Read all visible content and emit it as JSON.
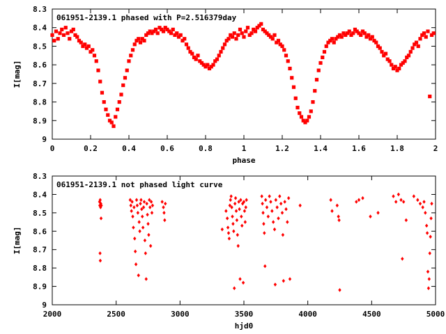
{
  "chart_data": [
    {
      "type": "scatter",
      "title": "061951-2139.1 phased with P=2.516379day",
      "xlabel": "phase",
      "ylabel": "I[mag]",
      "xlim": [
        0,
        2
      ],
      "ylim": [
        8.3,
        9.0
      ],
      "y_inverted": true,
      "grid": false,
      "marker_color": "#ff0000",
      "x_ticks": [
        "0",
        "0.2",
        "0.4",
        "0.6",
        "0.8",
        "1",
        "1.2",
        "1.4",
        "1.6",
        "1.8",
        "2"
      ],
      "x_tick_values": [
        0,
        0.2,
        0.4,
        0.6,
        0.8,
        1.0,
        1.2,
        1.4,
        1.6,
        1.8,
        2.0
      ],
      "y_ticks": [
        "8.3",
        "8.4",
        "8.5",
        "8.6",
        "8.7",
        "8.8",
        "8.9",
        "9"
      ],
      "y_tick_values": [
        8.3,
        8.4,
        8.5,
        8.6,
        8.7,
        8.8,
        8.9,
        9.0
      ],
      "points": [
        [
          0.0,
          8.44
        ],
        [
          0.01,
          8.47
        ],
        [
          0.02,
          8.42
        ],
        [
          0.03,
          8.46
        ],
        [
          0.04,
          8.43
        ],
        [
          0.05,
          8.41
        ],
        [
          0.06,
          8.44
        ],
        [
          0.07,
          8.4
        ],
        [
          0.08,
          8.43
        ],
        [
          0.09,
          8.46
        ],
        [
          0.1,
          8.42
        ],
        [
          0.11,
          8.41
        ],
        [
          0.12,
          8.44
        ],
        [
          0.13,
          8.45
        ],
        [
          0.14,
          8.47
        ],
        [
          0.15,
          8.48
        ],
        [
          0.16,
          8.5
        ],
        [
          0.17,
          8.49
        ],
        [
          0.18,
          8.51
        ],
        [
          0.19,
          8.5
        ],
        [
          0.2,
          8.53
        ],
        [
          0.21,
          8.52
        ],
        [
          0.22,
          8.55
        ],
        [
          0.23,
          8.58
        ],
        [
          0.24,
          8.63
        ],
        [
          0.25,
          8.69
        ],
        [
          0.26,
          8.75
        ],
        [
          0.27,
          8.8
        ],
        [
          0.28,
          8.84
        ],
        [
          0.29,
          8.87
        ],
        [
          0.3,
          8.9
        ],
        [
          0.31,
          8.91
        ],
        [
          0.32,
          8.93
        ],
        [
          0.33,
          8.88
        ],
        [
          0.34,
          8.84
        ],
        [
          0.35,
          8.8
        ],
        [
          0.36,
          8.76
        ],
        [
          0.37,
          8.71
        ],
        [
          0.38,
          8.67
        ],
        [
          0.39,
          8.63
        ],
        [
          0.4,
          8.58
        ],
        [
          0.41,
          8.55
        ],
        [
          0.42,
          8.52
        ],
        [
          0.43,
          8.49
        ],
        [
          0.44,
          8.47
        ],
        [
          0.45,
          8.46
        ],
        [
          0.46,
          8.48
        ],
        [
          0.47,
          8.46
        ],
        [
          0.48,
          8.47
        ],
        [
          0.49,
          8.44
        ],
        [
          0.5,
          8.43
        ],
        [
          0.51,
          8.42
        ],
        [
          0.52,
          8.43
        ],
        [
          0.53,
          8.42
        ],
        [
          0.54,
          8.41
        ],
        [
          0.55,
          8.43
        ],
        [
          0.56,
          8.4
        ],
        [
          0.57,
          8.41
        ],
        [
          0.58,
          8.42
        ],
        [
          0.59,
          8.4
        ],
        [
          0.6,
          8.41
        ],
        [
          0.61,
          8.42
        ],
        [
          0.62,
          8.43
        ],
        [
          0.63,
          8.41
        ],
        [
          0.64,
          8.44
        ],
        [
          0.65,
          8.43
        ],
        [
          0.66,
          8.45
        ],
        [
          0.67,
          8.44
        ],
        [
          0.68,
          8.47
        ],
        [
          0.69,
          8.46
        ],
        [
          0.7,
          8.49
        ],
        [
          0.71,
          8.51
        ],
        [
          0.72,
          8.53
        ],
        [
          0.73,
          8.54
        ],
        [
          0.74,
          8.56
        ],
        [
          0.75,
          8.57
        ],
        [
          0.76,
          8.55
        ],
        [
          0.77,
          8.58
        ],
        [
          0.78,
          8.59
        ],
        [
          0.79,
          8.6
        ],
        [
          0.8,
          8.61
        ],
        [
          0.81,
          8.6
        ],
        [
          0.82,
          8.62
        ],
        [
          0.83,
          8.61
        ],
        [
          0.84,
          8.6
        ],
        [
          0.85,
          8.58
        ],
        [
          0.86,
          8.57
        ],
        [
          0.87,
          8.55
        ],
        [
          0.88,
          8.53
        ],
        [
          0.89,
          8.51
        ],
        [
          0.9,
          8.49
        ],
        [
          0.91,
          8.47
        ],
        [
          0.92,
          8.46
        ],
        [
          0.93,
          8.44
        ],
        [
          0.94,
          8.45
        ],
        [
          0.95,
          8.43
        ],
        [
          0.96,
          8.46
        ],
        [
          0.97,
          8.44
        ],
        [
          0.98,
          8.41
        ],
        [
          0.99,
          8.43
        ],
        [
          1.0,
          8.45
        ],
        [
          1.01,
          8.42
        ],
        [
          1.02,
          8.4
        ],
        [
          1.03,
          8.44
        ],
        [
          1.04,
          8.43
        ],
        [
          1.05,
          8.41
        ],
        [
          1.06,
          8.42
        ],
        [
          1.07,
          8.4
        ],
        [
          1.08,
          8.39
        ],
        [
          1.09,
          8.38
        ],
        [
          1.1,
          8.41
        ],
        [
          1.11,
          8.42
        ],
        [
          1.12,
          8.43
        ],
        [
          1.13,
          8.44
        ],
        [
          1.14,
          8.45
        ],
        [
          1.15,
          8.46
        ],
        [
          1.16,
          8.44
        ],
        [
          1.17,
          8.48
        ],
        [
          1.18,
          8.47
        ],
        [
          1.19,
          8.49
        ],
        [
          1.2,
          8.5
        ],
        [
          1.21,
          8.52
        ],
        [
          1.22,
          8.55
        ],
        [
          1.23,
          8.58
        ],
        [
          1.24,
          8.62
        ],
        [
          1.25,
          8.67
        ],
        [
          1.26,
          8.72
        ],
        [
          1.27,
          8.78
        ],
        [
          1.28,
          8.83
        ],
        [
          1.29,
          8.86
        ],
        [
          1.3,
          8.88
        ],
        [
          1.31,
          8.9
        ],
        [
          1.32,
          8.91
        ],
        [
          1.33,
          8.9
        ],
        [
          1.34,
          8.88
        ],
        [
          1.35,
          8.85
        ],
        [
          1.36,
          8.8
        ],
        [
          1.37,
          8.74
        ],
        [
          1.38,
          8.68
        ],
        [
          1.39,
          8.63
        ],
        [
          1.4,
          8.59
        ],
        [
          1.41,
          8.56
        ],
        [
          1.42,
          8.53
        ],
        [
          1.43,
          8.5
        ],
        [
          1.44,
          8.48
        ],
        [
          1.45,
          8.47
        ],
        [
          1.46,
          8.46
        ],
        [
          1.47,
          8.48
        ],
        [
          1.48,
          8.46
        ],
        [
          1.49,
          8.45
        ],
        [
          1.5,
          8.44
        ],
        [
          1.51,
          8.45
        ],
        [
          1.52,
          8.43
        ],
        [
          1.53,
          8.44
        ],
        [
          1.54,
          8.43
        ],
        [
          1.55,
          8.42
        ],
        [
          1.56,
          8.44
        ],
        [
          1.57,
          8.43
        ],
        [
          1.58,
          8.41
        ],
        [
          1.59,
          8.42
        ],
        [
          1.6,
          8.43
        ],
        [
          1.61,
          8.44
        ],
        [
          1.62,
          8.42
        ],
        [
          1.63,
          8.43
        ],
        [
          1.64,
          8.45
        ],
        [
          1.65,
          8.44
        ],
        [
          1.66,
          8.46
        ],
        [
          1.67,
          8.45
        ],
        [
          1.68,
          8.47
        ],
        [
          1.69,
          8.48
        ],
        [
          1.7,
          8.5
        ],
        [
          1.71,
          8.51
        ],
        [
          1.72,
          8.53
        ],
        [
          1.73,
          8.55
        ],
        [
          1.74,
          8.54
        ],
        [
          1.75,
          8.57
        ],
        [
          1.76,
          8.58
        ],
        [
          1.77,
          8.6
        ],
        [
          1.78,
          8.62
        ],
        [
          1.79,
          8.61
        ],
        [
          1.8,
          8.63
        ],
        [
          1.81,
          8.62
        ],
        [
          1.82,
          8.6
        ],
        [
          1.83,
          8.59
        ],
        [
          1.84,
          8.58
        ],
        [
          1.85,
          8.56
        ],
        [
          1.86,
          8.55
        ],
        [
          1.87,
          8.53
        ],
        [
          1.88,
          8.51
        ],
        [
          1.89,
          8.49
        ],
        [
          1.9,
          8.48
        ],
        [
          1.91,
          8.5
        ],
        [
          1.92,
          8.46
        ],
        [
          1.93,
          8.44
        ],
        [
          1.94,
          8.43
        ],
        [
          1.95,
          8.45
        ],
        [
          1.96,
          8.42
        ],
        [
          1.97,
          8.77
        ],
        [
          1.98,
          8.44
        ],
        [
          1.99,
          8.43
        ]
      ]
    },
    {
      "type": "scatter",
      "title": "061951-2139.1 not phased light curve",
      "xlabel": "hjd0",
      "ylabel": "I[mag]",
      "xlim": [
        2000,
        5000
      ],
      "ylim": [
        8.3,
        9.0
      ],
      "y_inverted": true,
      "grid": false,
      "marker_color": "#ff0000",
      "x_ticks": [
        "2000",
        "2500",
        "3000",
        "3500",
        "4000",
        "4500",
        "5000"
      ],
      "x_tick_values": [
        2000,
        2500,
        3000,
        3500,
        4000,
        4500,
        5000
      ],
      "y_ticks": [
        "8.3",
        "8.4",
        "8.5",
        "8.6",
        "8.7",
        "8.8",
        "8.9",
        "9"
      ],
      "y_tick_values": [
        8.3,
        8.4,
        8.5,
        8.6,
        8.7,
        8.8,
        8.9,
        9.0
      ],
      "points": [
        [
          2370,
          8.44
        ],
        [
          2372,
          8.46
        ],
        [
          2375,
          8.43
        ],
        [
          2378,
          8.47
        ],
        [
          2380,
          8.45
        ],
        [
          2382,
          8.53
        ],
        [
          2374,
          8.72
        ],
        [
          2376,
          8.76
        ],
        [
          2384,
          8.46
        ],
        [
          2610,
          8.43
        ],
        [
          2615,
          8.46
        ],
        [
          2620,
          8.49
        ],
        [
          2625,
          8.44
        ],
        [
          2630,
          8.52
        ],
        [
          2635,
          8.58
        ],
        [
          2640,
          8.47
        ],
        [
          2645,
          8.64
        ],
        [
          2650,
          8.71
        ],
        [
          2655,
          8.78
        ],
        [
          2660,
          8.43
        ],
        [
          2665,
          8.46
        ],
        [
          2670,
          8.5
        ],
        [
          2675,
          8.84
        ],
        [
          2680,
          8.55
        ],
        [
          2685,
          8.6
        ],
        [
          2690,
          8.45
        ],
        [
          2695,
          8.43
        ],
        [
          2700,
          8.48
        ],
        [
          2705,
          8.52
        ],
        [
          2710,
          8.58
        ],
        [
          2715,
          8.47
        ],
        [
          2720,
          8.44
        ],
        [
          2725,
          8.65
        ],
        [
          2730,
          8.72
        ],
        [
          2735,
          8.86
        ],
        [
          2740,
          8.45
        ],
        [
          2745,
          8.51
        ],
        [
          2750,
          8.56
        ],
        [
          2755,
          8.62
        ],
        [
          2760,
          8.43
        ],
        [
          2765,
          8.47
        ],
        [
          2770,
          8.68
        ],
        [
          2775,
          8.44
        ],
        [
          2780,
          8.5
        ],
        [
          2785,
          8.46
        ],
        [
          2860,
          8.44
        ],
        [
          2870,
          8.47
        ],
        [
          2875,
          8.5
        ],
        [
          2880,
          8.54
        ],
        [
          2885,
          8.45
        ],
        [
          3330,
          8.59
        ],
        [
          3360,
          8.49
        ],
        [
          3370,
          8.53
        ],
        [
          3375,
          8.58
        ],
        [
          3380,
          8.61
        ],
        [
          3385,
          8.64
        ],
        [
          3390,
          8.46
        ],
        [
          3395,
          8.43
        ],
        [
          3400,
          8.41
        ],
        [
          3405,
          8.47
        ],
        [
          3410,
          8.52
        ],
        [
          3415,
          8.56
        ],
        [
          3420,
          8.6
        ],
        [
          3425,
          8.91
        ],
        [
          3430,
          8.45
        ],
        [
          3435,
          8.42
        ],
        [
          3440,
          8.49
        ],
        [
          3445,
          8.54
        ],
        [
          3450,
          8.62
        ],
        [
          3455,
          8.68
        ],
        [
          3460,
          8.44
        ],
        [
          3465,
          8.48
        ],
        [
          3470,
          8.86
        ],
        [
          3475,
          8.43
        ],
        [
          3480,
          8.52
        ],
        [
          3485,
          8.57
        ],
        [
          3490,
          8.45
        ],
        [
          3495,
          8.88
        ],
        [
          3500,
          8.44
        ],
        [
          3505,
          8.49
        ],
        [
          3510,
          8.55
        ],
        [
          3515,
          8.47
        ],
        [
          3520,
          8.43
        ],
        [
          3640,
          8.41
        ],
        [
          3645,
          8.45
        ],
        [
          3650,
          8.5
        ],
        [
          3655,
          8.56
        ],
        [
          3660,
          8.61
        ],
        [
          3665,
          8.79
        ],
        [
          3670,
          8.43
        ],
        [
          3680,
          8.47
        ],
        [
          3690,
          8.52
        ],
        [
          3700,
          8.41
        ],
        [
          3710,
          8.44
        ],
        [
          3720,
          8.49
        ],
        [
          3730,
          8.55
        ],
        [
          3740,
          8.59
        ],
        [
          3745,
          8.89
        ],
        [
          3750,
          8.43
        ],
        [
          3760,
          8.47
        ],
        [
          3770,
          8.53
        ],
        [
          3780,
          8.41
        ],
        [
          3790,
          8.45
        ],
        [
          3800,
          8.5
        ],
        [
          3805,
          8.62
        ],
        [
          3810,
          8.87
        ],
        [
          3820,
          8.44
        ],
        [
          3830,
          8.48
        ],
        [
          3840,
          8.55
        ],
        [
          3850,
          8.42
        ],
        [
          3860,
          8.86
        ],
        [
          3940,
          8.46
        ],
        [
          4180,
          8.43
        ],
        [
          4190,
          8.49
        ],
        [
          4230,
          8.46
        ],
        [
          4240,
          8.52
        ],
        [
          4245,
          8.54
        ],
        [
          4250,
          8.92
        ],
        [
          4380,
          8.44
        ],
        [
          4400,
          8.43
        ],
        [
          4430,
          8.42
        ],
        [
          4490,
          8.52
        ],
        [
          4550,
          8.5
        ],
        [
          4670,
          8.41
        ],
        [
          4690,
          8.44
        ],
        [
          4710,
          8.4
        ],
        [
          4730,
          8.43
        ],
        [
          4740,
          8.75
        ],
        [
          4750,
          8.44
        ],
        [
          4770,
          8.54
        ],
        [
          4830,
          8.41
        ],
        [
          4860,
          8.43
        ],
        [
          4880,
          8.45
        ],
        [
          4900,
          8.47
        ],
        [
          4910,
          8.44
        ],
        [
          4920,
          8.5
        ],
        [
          4930,
          8.57
        ],
        [
          4935,
          8.61
        ],
        [
          4940,
          8.82
        ],
        [
          4945,
          8.91
        ],
        [
          4950,
          8.86
        ],
        [
          4955,
          8.72
        ],
        [
          4960,
          8.63
        ],
        [
          4965,
          8.53
        ],
        [
          4970,
          8.45
        ]
      ]
    }
  ]
}
